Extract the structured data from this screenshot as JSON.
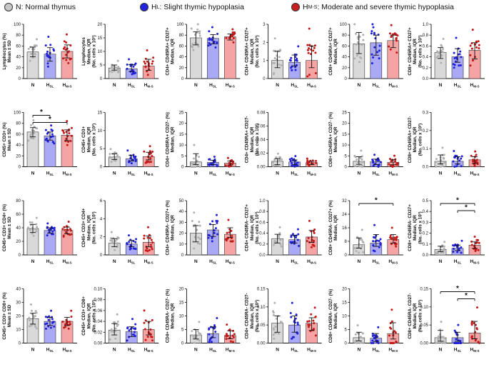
{
  "legend": {
    "items": [
      {
        "label": "N: Normal thymus",
        "color": "#c8c8c8"
      },
      {
        "label": "H",
        "sub": "L",
        "rest": ": Slight thymic hypoplasia",
        "color": "#2323e0"
      },
      {
        "label": "H",
        "sub": "M-S",
        "rest": ": Moderate and severe thymic hypoplasia",
        "color": "#c81e1e"
      }
    ]
  },
  "colors": {
    "N_fill": "#d9d9d9",
    "N_dot": "#b0b0b0",
    "HL_fill": "#a9a9f5",
    "HL_dot": "#1f1fd9",
    "HM_fill": "#f5a3a3",
    "HM_dot": "#c41818"
  },
  "chart_data": [
    {
      "type": "bar",
      "ylabel": [
        "Lymphocytes (%)",
        "Mean ± SD"
      ],
      "yticks": [
        "0",
        "20",
        "40",
        "60",
        "80",
        "100"
      ],
      "ylim": [
        0,
        100
      ],
      "categories": [
        "N",
        "HSL",
        "HM-S"
      ],
      "values": [
        49,
        45,
        50
      ],
      "err": [
        [
          40,
          58
        ],
        [
          32,
          57
        ],
        [
          38,
          62
        ]
      ],
      "sig": []
    },
    {
      "type": "bar",
      "ylabel": [
        "Lymphocytes",
        "Median, IQR",
        "(No. cells x 10³)"
      ],
      "yticks": [
        "0",
        "5",
        "10",
        "15",
        "20"
      ],
      "ylim": [
        0,
        20
      ],
      "categories": [
        "N",
        "HSL",
        "HM-S"
      ],
      "values": [
        3.9,
        3.6,
        4.6
      ],
      "err": [
        [
          3.1,
          5.0
        ],
        [
          2.6,
          5.1
        ],
        [
          3.0,
          7.1
        ]
      ],
      "sig": []
    },
    {
      "type": "bar",
      "ylabel": [
        "CD4+ CD45RA+ CD27+",
        "Median, IQR"
      ],
      "yticks": [
        "0",
        "20",
        "40",
        "60",
        "80",
        "100"
      ],
      "ylim": [
        0,
        100
      ],
      "categories": [
        "N",
        "HSL",
        "HM-S"
      ],
      "values": [
        75,
        74,
        77
      ],
      "err": [
        [
          62,
          86
        ],
        [
          64,
          81
        ],
        [
          71,
          82
        ]
      ],
      "sig": []
    },
    {
      "type": "bar",
      "ylabel": [
        "CD4+ CD45RA+ CD27+",
        "Median, IQR",
        "(No. cells x 10³)"
      ],
      "yticks": [
        "0",
        "1",
        "2",
        "3"
      ],
      "ylim": [
        0,
        3
      ],
      "categories": [
        "N",
        "HSL",
        "HM-S"
      ],
      "values": [
        1.0,
        0.9,
        1.0
      ],
      "err": [
        [
          0.6,
          1.5
        ],
        [
          0.7,
          1.3
        ],
        [
          0.6,
          1.8
        ]
      ],
      "sig": []
    },
    {
      "type": "bar",
      "ylabel": [
        "CD8+ CD45RA+ CD27+",
        "Median, IQR"
      ],
      "yticks": [
        "0",
        "20",
        "40",
        "60",
        "80",
        "100"
      ],
      "ylim": [
        0,
        100
      ],
      "categories": [
        "N",
        "HSL",
        "HM-S"
      ],
      "values": [
        64,
        66,
        70
      ],
      "err": [
        [
          46,
          85
        ],
        [
          43,
          80
        ],
        [
          57,
          80
        ]
      ],
      "sig": []
    },
    {
      "type": "bar",
      "ylabel": [
        "CD8+ CD45RA+ CD27+",
        "Median, IQR",
        "(No. cells x 10³)"
      ],
      "yticks": [
        "0.0",
        "0.2",
        "0.4",
        "0.6",
        "0.8",
        "1.0"
      ],
      "ylim": [
        0,
        1
      ],
      "categories": [
        "N",
        "HSL",
        "HM-S"
      ],
      "values": [
        0.48,
        0.4,
        0.52
      ],
      "err": [
        [
          0.37,
          0.57
        ],
        [
          0.3,
          0.55
        ],
        [
          0.36,
          0.66
        ]
      ],
      "sig": []
    },
    {
      "type": "bar",
      "ylabel": [
        "CD45+ CD3+ (%)",
        "Mean ± SD"
      ],
      "yticks": [
        "0",
        "20",
        "40",
        "60",
        "80",
        "100"
      ],
      "ylim": [
        0,
        100
      ],
      "categories": [
        "N",
        "HSL",
        "HM-S"
      ],
      "values": [
        64,
        57,
        58
      ],
      "err": [
        [
          55,
          72
        ],
        [
          49,
          64
        ],
        [
          48,
          68
        ]
      ],
      "sig": [
        {
          "from": 0,
          "to": 1,
          "label": "*"
        },
        {
          "from": 0,
          "to": 2,
          "label": "*"
        }
      ]
    },
    {
      "type": "bar",
      "ylabel": [
        "CD45+ CD3+",
        "Median, IQR",
        "(No. cells x 10³)"
      ],
      "yticks": [
        "0",
        "5",
        "10",
        "15"
      ],
      "ylim": [
        0,
        15
      ],
      "categories": [
        "N",
        "HSL",
        "HM-S"
      ],
      "values": [
        2.7,
        2.2,
        2.8
      ],
      "err": [
        [
          2.0,
          3.6
        ],
        [
          1.6,
          3.2
        ],
        [
          1.9,
          4.0
        ]
      ],
      "sig": []
    },
    {
      "type": "bar",
      "ylabel": [
        "CD4+ CD45RA+ CD27- (%)",
        "Median, IQR"
      ],
      "yticks": [
        "0",
        "5",
        "10",
        "15",
        "20",
        "25"
      ],
      "ylim": [
        0,
        25
      ],
      "categories": [
        "N",
        "HSL",
        "HM-S"
      ],
      "values": [
        2.2,
        2.0,
        1.7
      ],
      "err": [
        [
          1.0,
          6.0
        ],
        [
          1.0,
          3.0
        ],
        [
          0.8,
          2.6
        ]
      ],
      "sig": []
    },
    {
      "type": "bar",
      "ylabel": [
        "CD4+ CD45RA+ CD27-",
        "Median, IQR",
        "(No. cells x 10³)"
      ],
      "yticks": [
        "0.00",
        "0.02",
        "0.04",
        "0.06",
        "0.08"
      ],
      "ylim": [
        0,
        0.08
      ],
      "categories": [
        "N",
        "HSL",
        "HM-S"
      ],
      "values": [
        0.008,
        0.007,
        0.006
      ],
      "err": [
        [
          0.003,
          0.012
        ],
        [
          0.003,
          0.01
        ],
        [
          0.003,
          0.008
        ]
      ],
      "sig": []
    },
    {
      "type": "bar",
      "ylabel": [
        "CD8+ CD45RA+ CD27- (%)",
        "Median, IQR"
      ],
      "yticks": [
        "0",
        "5",
        "10",
        "15",
        "20",
        "25"
      ],
      "ylim": [
        0,
        25
      ],
      "categories": [
        "N",
        "HSL",
        "HM-S"
      ],
      "values": [
        2.5,
        2.3,
        2.0
      ],
      "err": [
        [
          1.1,
          4.6
        ],
        [
          1.0,
          3.5
        ],
        [
          0.9,
          3.2
        ]
      ],
      "sig": []
    },
    {
      "type": "bar",
      "ylabel": [
        "CD8+ CD45RA+ CD27-",
        "Median, IQR",
        "(No. cells x 10³)"
      ],
      "yticks": [
        "0.0",
        "0.1",
        "0.2",
        "0.3"
      ],
      "ylim": [
        0,
        0.3
      ],
      "categories": [
        "N",
        "HSL",
        "HM-S"
      ],
      "values": [
        0.03,
        0.03,
        0.038
      ],
      "err": [
        [
          0.015,
          0.065
        ],
        [
          0.015,
          0.055
        ],
        [
          0.018,
          0.055
        ]
      ],
      "sig": []
    },
    {
      "type": "bar",
      "ylabel": [
        "CD45+ CD3+ CD4+ (%)",
        "Mean ± SD"
      ],
      "yticks": [
        "0",
        "20",
        "40",
        "60",
        "80"
      ],
      "ylim": [
        0,
        80
      ],
      "categories": [
        "N",
        "HSL",
        "HM-S"
      ],
      "values": [
        39,
        36,
        36
      ],
      "err": [
        [
          33,
          45
        ],
        [
          32,
          40
        ],
        [
          31,
          41
        ]
      ],
      "sig": []
    },
    {
      "type": "bar",
      "ylabel": [
        "CD45+ CD3+ CD4+",
        "Median, IQR",
        "(No. cells x 10³)"
      ],
      "yticks": [
        "0",
        "2",
        "4",
        "6"
      ],
      "ylim": [
        0,
        6
      ],
      "categories": [
        "N",
        "HSL",
        "HM-S"
      ],
      "values": [
        1.3,
        1.2,
        1.4
      ],
      "err": [
        [
          0.9,
          1.8
        ],
        [
          0.9,
          1.6
        ],
        [
          0.9,
          2.1
        ]
      ],
      "sig": []
    },
    {
      "type": "bar",
      "ylabel": [
        "CD4+ CD45RA- CD27+ (%)",
        "Median, IQR"
      ],
      "yticks": [
        "0",
        "10",
        "20",
        "30",
        "40",
        "50"
      ],
      "ylim": [
        0,
        50
      ],
      "categories": [
        "N",
        "HSL",
        "HM-S"
      ],
      "values": [
        20,
        23,
        19
      ],
      "err": [
        [
          12,
          27
        ],
        [
          17,
          28
        ],
        [
          16,
          25
        ]
      ],
      "sig": []
    },
    {
      "type": "bar",
      "ylabel": [
        "CD4+ CD45RA- CD27+",
        "Median, IQR",
        "(No. cells x 10³)"
      ],
      "yticks": [
        "0.0",
        "0.2",
        "0.4",
        "0.6",
        "0.8",
        "1.0"
      ],
      "ylim": [
        0,
        1
      ],
      "categories": [
        "N",
        "HSL",
        "HM-S"
      ],
      "values": [
        0.3,
        0.28,
        0.33
      ],
      "err": [
        [
          0.22,
          0.38
        ],
        [
          0.22,
          0.36
        ],
        [
          0.23,
          0.45
        ]
      ],
      "sig": []
    },
    {
      "type": "bar",
      "ylabel": [
        "CD8+ CD45RA- CD27+ (%)",
        "Median, IQR"
      ],
      "yticks": [
        "0",
        "8",
        "16",
        "24",
        "32"
      ],
      "ylim": [
        0,
        32
      ],
      "categories": [
        "N",
        "HSL",
        "HM-S"
      ],
      "values": [
        6,
        7,
        9
      ],
      "err": [
        [
          4,
          10
        ],
        [
          5,
          12
        ],
        [
          7,
          12
        ]
      ],
      "sig": [
        {
          "from": 0,
          "to": 2,
          "label": "*"
        }
      ]
    },
    {
      "type": "bar",
      "ylabel": [
        "CD8+ CD45RA- CD27+",
        "Median, IQR",
        "(No. cells x 10³)"
      ],
      "yticks": [
        "0.0",
        "0.1",
        "0.2",
        "0.3",
        "0.4",
        "0.5"
      ],
      "ylim": [
        0,
        0.5
      ],
      "categories": [
        "N",
        "HSL",
        "HM-S"
      ],
      "values": [
        0.05,
        0.06,
        0.09
      ],
      "err": [
        [
          0.03,
          0.08
        ],
        [
          0.04,
          0.09
        ],
        [
          0.06,
          0.12
        ]
      ],
      "sig": [
        {
          "from": 0,
          "to": 2,
          "label": "*"
        },
        {
          "from": 1,
          "to": 2,
          "label": "*"
        }
      ]
    },
    {
      "type": "bar",
      "ylabel": [
        "CD45+ CD3+ CD8+ (%)",
        "Mean ± SD"
      ],
      "yticks": [
        "0",
        "10",
        "20",
        "30",
        "40"
      ],
      "ylim": [
        0,
        40
      ],
      "categories": [
        "N",
        "HSL",
        "HM-S"
      ],
      "values": [
        18,
        16,
        16
      ],
      "err": [
        [
          14,
          22
        ],
        [
          13,
          19
        ],
        [
          13,
          19
        ]
      ],
      "sig": []
    },
    {
      "type": "bar",
      "ylabel": [
        "CD45+ CD3+ CD8+",
        "Median, IQR",
        "(No. cells x 10³)"
      ],
      "yticks": [
        "0.00",
        "0.02",
        "0.04",
        "0.06",
        "0.08",
        "0.10"
      ],
      "ylim": [
        0,
        0.1
      ],
      "categories": [
        "N",
        "HSL",
        "HM-S"
      ],
      "values": [
        0.024,
        0.021,
        0.025
      ],
      "err": [
        [
          0.015,
          0.036
        ],
        [
          0.012,
          0.03
        ],
        [
          0.015,
          0.04
        ]
      ],
      "sig": []
    },
    {
      "type": "bar",
      "ylabel": [
        "CD4+ CD45RA- CD27- (%)",
        "Median, IQR"
      ],
      "yticks": [
        "0",
        "5",
        "10",
        "15",
        "20"
      ],
      "ylim": [
        0,
        20
      ],
      "categories": [
        "N",
        "HSL",
        "HM-S"
      ],
      "values": [
        3,
        3.5,
        2.8
      ],
      "err": [
        [
          1.5,
          5.0
        ],
        [
          2.0,
          6.0
        ],
        [
          1.6,
          4.5
        ]
      ],
      "sig": []
    },
    {
      "type": "bar",
      "ylabel": [
        "CD4+ CD45RA- CD27-",
        "Median, IQR",
        "(No. cells x 10³)"
      ],
      "yticks": [
        "0.00",
        "0.05",
        "0.10",
        "0.15"
      ],
      "ylim": [
        0,
        0.15
      ],
      "categories": [
        "N",
        "HSL",
        "HM-S"
      ],
      "values": [
        0.055,
        0.05,
        0.055
      ],
      "err": [
        [
          0.03,
          0.075
        ],
        [
          0.03,
          0.075
        ],
        [
          0.035,
          0.07
        ]
      ],
      "sig": []
    },
    {
      "type": "bar",
      "ylabel": [
        "CD8+ CD45RA- CD27- (%)",
        "Median, IQR"
      ],
      "yticks": [
        "0",
        "5",
        "10",
        "15",
        "20"
      ],
      "ylim": [
        0,
        20
      ],
      "categories": [
        "N",
        "HSL",
        "HM-S"
      ],
      "values": [
        2,
        1.8,
        3.5
      ],
      "err": [
        [
          0.8,
          4.0
        ],
        [
          0.6,
          3.5
        ],
        [
          1.5,
          7.5
        ]
      ],
      "sig": []
    },
    {
      "type": "bar",
      "ylabel": [
        "CD8+ CD45RA- CD27-",
        "Median, IQR",
        "(No. cells x 10³)"
      ],
      "yticks": [
        "0.00",
        "0.05",
        "0.10",
        "0.15"
      ],
      "ylim": [
        0,
        0.15
      ],
      "categories": [
        "N",
        "HSL",
        "HM-S"
      ],
      "values": [
        0.015,
        0.015,
        0.028
      ],
      "err": [
        [
          0.005,
          0.035
        ],
        [
          0.005,
          0.03
        ],
        [
          0.012,
          0.06
        ]
      ],
      "sig": [
        {
          "from": 0,
          "to": 2,
          "label": "*"
        },
        {
          "from": 1,
          "to": 2,
          "label": "*"
        }
      ]
    }
  ]
}
